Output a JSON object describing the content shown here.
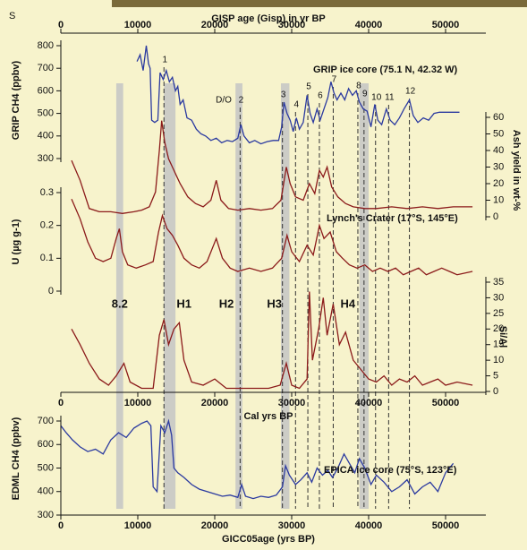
{
  "page_fragment": "S",
  "chart_data": [
    {
      "type": "line",
      "title": "GRIP ice core (75.1 N, 42.32 W)",
      "x_label": "GISP age (Gisp) in yr BP",
      "y_label": "GRIP CH4 (ppbv)",
      "xlim": [
        0,
        55000
      ],
      "xticks": [
        0,
        10000,
        20000,
        30000,
        40000,
        50000
      ],
      "ylim": [
        300,
        800
      ],
      "yticks": [
        300,
        400,
        500,
        600,
        700,
        800
      ],
      "color": "#2b3aa0",
      "x": [
        9900,
        10300,
        10700,
        11100,
        11400,
        11600,
        11800,
        12200,
        12600,
        12900,
        13300,
        13700,
        14100,
        14500,
        14900,
        15200,
        15500,
        15900,
        16400,
        17000,
        17600,
        18200,
        18800,
        19500,
        20200,
        20900,
        21600,
        22300,
        23000,
        23400,
        23800,
        24500,
        25200,
        26000,
        26800,
        27600,
        28300,
        28700,
        29000,
        29400,
        29800,
        30200,
        30600,
        31000,
        31500,
        32000,
        32400,
        32800,
        33300,
        33700,
        34200,
        34700,
        35100,
        35500,
        35900,
        36400,
        36900,
        37400,
        37900,
        38400,
        38800,
        39300,
        39800,
        40300,
        40800,
        41200,
        41700,
        42300,
        42800,
        43400,
        44000,
        44600,
        45300,
        45800,
        46400,
        47100,
        47800,
        48500,
        49200,
        50000,
        51000,
        51800
      ],
      "values": [
        730,
        760,
        690,
        800,
        720,
        700,
        470,
        460,
        470,
        680,
        650,
        690,
        640,
        660,
        600,
        620,
        540,
        560,
        480,
        470,
        430,
        410,
        400,
        380,
        390,
        370,
        380,
        375,
        390,
        450,
        400,
        370,
        380,
        365,
        375,
        380,
        380,
        440,
        550,
        500,
        470,
        420,
        480,
        430,
        460,
        580,
        500,
        460,
        520,
        470,
        520,
        570,
        640,
        590,
        560,
        590,
        560,
        610,
        580,
        600,
        550,
        520,
        510,
        440,
        540,
        470,
        450,
        520,
        470,
        450,
        480,
        520,
        560,
        490,
        460,
        480,
        470,
        500,
        505,
        505,
        505,
        505
      ],
      "annotations": [
        "D/O"
      ],
      "events": [
        {
          "label": "1",
          "x": 13400
        },
        {
          "label": "2",
          "x": 23300
        },
        {
          "label": "3",
          "x": 28800
        },
        {
          "label": "4",
          "x": 30500
        },
        {
          "label": "5",
          "x": 32100
        },
        {
          "label": "6",
          "x": 33600
        },
        {
          "label": "7",
          "x": 35400
        },
        {
          "label": "8",
          "x": 38600
        },
        {
          "label": "9",
          "x": 39400
        },
        {
          "label": "10",
          "x": 40900
        },
        {
          "label": "11",
          "x": 42600
        },
        {
          "label": "12",
          "x": 45300
        }
      ],
      "bands": [
        {
          "label": "8.2",
          "x": [
            7200,
            8100
          ]
        },
        {
          "label": "H1",
          "x": [
            13400,
            14900
          ]
        },
        {
          "label": "H2",
          "x": [
            22700,
            23600
          ]
        },
        {
          "label": "H3",
          "x": [
            28600,
            29700
          ]
        },
        {
          "label": "H4",
          "x": [
            38800,
            40000
          ]
        }
      ]
    },
    {
      "type": "line",
      "y_label": "Ash yield in wt-%",
      "xlim": [
        0,
        55000
      ],
      "ylim": [
        0,
        60
      ],
      "yticks": [
        0,
        10,
        20,
        30,
        40,
        50,
        60
      ],
      "color": "#8b1a1a",
      "x": [
        1400,
        2500,
        3700,
        5000,
        6500,
        8000,
        9500,
        10500,
        11500,
        12300,
        12800,
        13100,
        13500,
        14000,
        14500,
        15000,
        15500,
        16500,
        17500,
        18500,
        19500,
        20200,
        20800,
        21800,
        23000,
        24500,
        26000,
        27500,
        28600,
        29300,
        29800,
        30500,
        31500,
        32300,
        33000,
        33600,
        34100,
        34600,
        35200,
        36000,
        37000,
        38000,
        39500,
        41000,
        43000,
        45000,
        47000,
        49000,
        51000,
        53500
      ],
      "values": [
        34,
        22,
        5,
        3,
        3,
        2,
        3,
        4,
        6,
        15,
        40,
        58,
        45,
        35,
        30,
        25,
        20,
        12,
        8,
        6,
        10,
        22,
        10,
        5,
        4,
        5,
        4,
        5,
        10,
        30,
        20,
        12,
        10,
        20,
        14,
        28,
        24,
        30,
        18,
        12,
        8,
        6,
        5,
        5,
        6,
        5,
        6,
        5,
        6,
        6
      ]
    },
    {
      "type": "line",
      "title": "Lynch's Crater (17°S, 145°E)",
      "y_label": "U (µg g-1)",
      "xlim": [
        0,
        55000
      ],
      "ylim": [
        0,
        0.3
      ],
      "yticks": [
        0,
        0.1,
        0.2,
        0.3
      ],
      "color": "#8b1a1a",
      "x": [
        1400,
        2500,
        3500,
        4500,
        5500,
        6500,
        7200,
        7600,
        8000,
        8700,
        9800,
        11000,
        12000,
        12700,
        13200,
        13800,
        14500,
        15200,
        16000,
        17000,
        18000,
        19000,
        20200,
        21000,
        22000,
        23000,
        24500,
        26000,
        27500,
        28700,
        29400,
        30000,
        31000,
        32000,
        32800,
        33600,
        34200,
        35000,
        35800,
        36600,
        37500,
        38500,
        39500,
        40500,
        41500,
        42500,
        43500,
        44500,
        45500,
        46500,
        47500,
        48500,
        49500,
        50500,
        51500,
        53500
      ],
      "values": [
        0.28,
        0.22,
        0.15,
        0.1,
        0.09,
        0.1,
        0.16,
        0.19,
        0.12,
        0.08,
        0.07,
        0.08,
        0.09,
        0.18,
        0.23,
        0.19,
        0.17,
        0.14,
        0.1,
        0.08,
        0.07,
        0.09,
        0.16,
        0.1,
        0.07,
        0.06,
        0.07,
        0.06,
        0.07,
        0.1,
        0.17,
        0.12,
        0.09,
        0.14,
        0.11,
        0.2,
        0.16,
        0.18,
        0.12,
        0.1,
        0.08,
        0.07,
        0.08,
        0.06,
        0.07,
        0.06,
        0.07,
        0.05,
        0.06,
        0.07,
        0.05,
        0.06,
        0.07,
        0.06,
        0.05,
        0.06
      ]
    },
    {
      "type": "line",
      "x_label": "Cal yrs BP",
      "y_label": "Si/Al",
      "xlim": [
        0,
        55000
      ],
      "xticks": [
        0,
        10000,
        20000,
        30000,
        40000,
        50000
      ],
      "ylim": [
        0,
        35
      ],
      "yticks": [
        0,
        5,
        10,
        15,
        20,
        25,
        30,
        35
      ],
      "color": "#8b1a1a",
      "x": [
        1400,
        2500,
        3700,
        5000,
        6200,
        7200,
        8200,
        9000,
        10500,
        12000,
        12800,
        13400,
        14000,
        14700,
        15400,
        16000,
        17000,
        18500,
        20000,
        21500,
        23000,
        25000,
        27000,
        28500,
        29300,
        30000,
        31000,
        32000,
        32300,
        32700,
        33500,
        34100,
        34600,
        35400,
        36200,
        37000,
        38000,
        39000,
        40000,
        41000,
        42000,
        43000,
        44000,
        45000,
        46000,
        47000,
        48000,
        49000,
        50000,
        51500,
        53500
      ],
      "values": [
        20,
        15,
        9,
        4,
        2,
        5,
        9,
        3,
        1,
        1,
        18,
        23,
        15,
        20,
        22,
        10,
        3,
        2,
        4,
        1,
        1,
        1,
        1,
        2,
        9,
        2,
        1,
        4,
        32,
        10,
        20,
        30,
        18,
        28,
        15,
        19,
        10,
        7,
        4,
        3,
        5,
        2,
        4,
        3,
        5,
        2,
        3,
        4,
        2,
        3,
        2
      ]
    },
    {
      "type": "line",
      "title": "EPICA ice core (75°S, 123°E)",
      "x_label": "GICC05age (yrs BP)",
      "y_label": "EDML CH4 (ppbv)",
      "xlim": [
        0,
        55000
      ],
      "xticks": [
        0,
        10000,
        20000,
        30000,
        40000,
        50000
      ],
      "ylim": [
        300,
        700
      ],
      "yticks": [
        300,
        400,
        500,
        600,
        700
      ],
      "color": "#2b3aa0",
      "x": [
        0,
        700,
        1500,
        2500,
        3500,
        4500,
        5500,
        6500,
        7500,
        8500,
        9500,
        10500,
        11200,
        11700,
        12000,
        12500,
        13000,
        13500,
        14000,
        14400,
        14700,
        15200,
        16000,
        17000,
        18000,
        19000,
        20000,
        21000,
        22000,
        23000,
        23500,
        24000,
        25000,
        26000,
        27000,
        28000,
        28800,
        29200,
        29700,
        30500,
        31200,
        32000,
        32600,
        33300,
        34000,
        34700,
        35300,
        36000,
        36800,
        37500,
        38200,
        38800,
        39500,
        40300,
        41000,
        42000,
        43000,
        44000,
        45000,
        46000,
        47000,
        48000,
        49000,
        50000,
        51000
      ],
      "values": [
        680,
        650,
        620,
        590,
        570,
        580,
        560,
        620,
        650,
        630,
        670,
        690,
        700,
        680,
        420,
        400,
        680,
        650,
        700,
        640,
        500,
        480,
        460,
        430,
        410,
        400,
        390,
        380,
        385,
        375,
        430,
        380,
        370,
        380,
        375,
        385,
        420,
        510,
        470,
        430,
        450,
        480,
        440,
        500,
        470,
        490,
        460,
        500,
        560,
        520,
        480,
        540,
        500,
        430,
        470,
        440,
        400,
        420,
        450,
        390,
        420,
        440,
        400,
        480,
        520
      ]
    }
  ]
}
